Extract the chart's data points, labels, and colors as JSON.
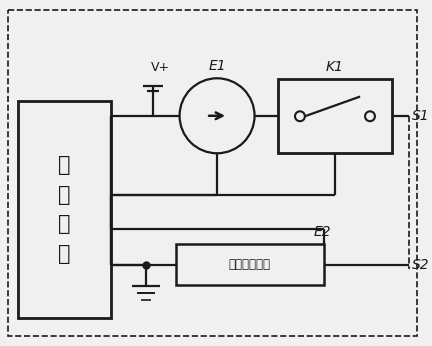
{
  "bg_color": "#f0f0f0",
  "line_color": "#1a1a1a",
  "text_color": "#1a1a1a",
  "micro_label": "微\n控\n制\n器",
  "k1_label": "K1",
  "current_label": "电流检测电路",
  "e1_label": "E1",
  "e2_label": "E2",
  "vplus_label": "V+",
  "s1_label": "S1",
  "s2_label": "S2"
}
